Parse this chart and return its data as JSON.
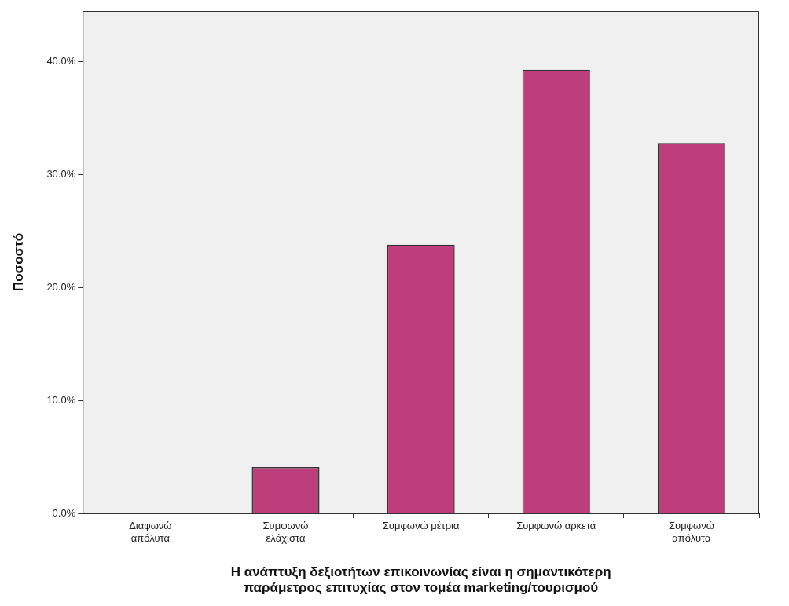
{
  "chart_data": {
    "type": "bar",
    "categories": [
      "Διαφωνώ\nαπόλυτα",
      "Συμφωνώ\nελάχιστα",
      "Συμφωνώ μέτρια",
      "Συμφωνώ αρκετά",
      "Συμφωνώ\nαπόλυτα"
    ],
    "values": [
      0,
      4.1,
      23.8,
      39.3,
      32.8
    ],
    "color": "#bc3e7a",
    "xlabel": "Η ανάπτυξη δεξιοτήτων επικοινωνίας είναι η σημαντικότερη\nπαράμετρος επιτυχίας στον τομέα marketing/τουρισμού",
    "ylabel": "Ποσοστό",
    "ylim": [
      0,
      44.5
    ],
    "yticks": [
      {
        "value": 0,
        "label": "0.0%"
      },
      {
        "value": 10,
        "label": "10.0%"
      },
      {
        "value": 20,
        "label": "20.0%"
      },
      {
        "value": 30,
        "label": "30.0%"
      },
      {
        "value": 40,
        "label": "40.0%"
      }
    ],
    "grid": false,
    "legend": false
  }
}
